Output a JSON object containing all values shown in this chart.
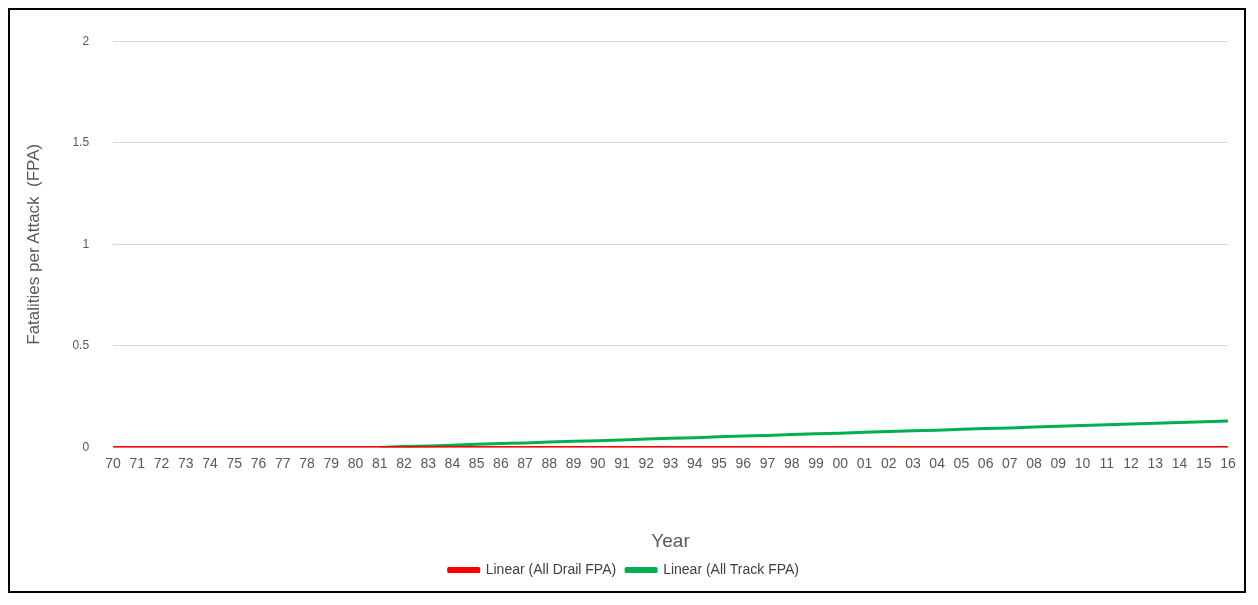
{
  "chart_data": {
    "type": "line",
    "xlabel": "Year",
    "ylabel": "Fatalities per Attack  (FPA)",
    "categories": [
      "70",
      "71",
      "72",
      "73",
      "74",
      "75",
      "76",
      "77",
      "78",
      "79",
      "80",
      "81",
      "82",
      "83",
      "84",
      "85",
      "86",
      "87",
      "88",
      "89",
      "90",
      "91",
      "92",
      "93",
      "94",
      "95",
      "96",
      "97",
      "98",
      "99",
      "00",
      "01",
      "02",
      "03",
      "04",
      "05",
      "06",
      "07",
      "08",
      "09",
      "10",
      "11",
      "12",
      "13",
      "14",
      "15",
      "16"
    ],
    "series": [
      {
        "name": "Linear (All Drail FPA)",
        "color": "#ff0000",
        "values": [
          0,
          0,
          0,
          0,
          0,
          0,
          0,
          0,
          0,
          0,
          0,
          0,
          0,
          0,
          0,
          0,
          0,
          0,
          0,
          0,
          0,
          0,
          0,
          0,
          0,
          0,
          0,
          0,
          0,
          0,
          0,
          0,
          0,
          0,
          0,
          0,
          0,
          0,
          0,
          0,
          0,
          0,
          0,
          0,
          0,
          0,
          0
        ]
      },
      {
        "name": "Linear (All Track FPA)",
        "color": "#00b050",
        "values": [
          null,
          null,
          null,
          null,
          null,
          null,
          null,
          null,
          null,
          null,
          null,
          0,
          0.004,
          0.007,
          0.011,
          0.015,
          0.019,
          0.022,
          0.026,
          0.03,
          0.033,
          0.037,
          0.041,
          0.045,
          0.048,
          0.052,
          0.056,
          0.059,
          0.063,
          0.067,
          0.07,
          0.074,
          0.078,
          0.082,
          0.085,
          0.089,
          0.093,
          0.096,
          0.1,
          0.104,
          0.108,
          0.111,
          0.115,
          0.119,
          0.122,
          0.126,
          0.13
        ]
      }
    ],
    "ylim": [
      0,
      2
    ],
    "yticks": [
      0,
      0.5,
      1,
      1.5,
      2
    ],
    "grid": "y",
    "legend": "bottom",
    "marker": "none",
    "line_style": "solid"
  }
}
